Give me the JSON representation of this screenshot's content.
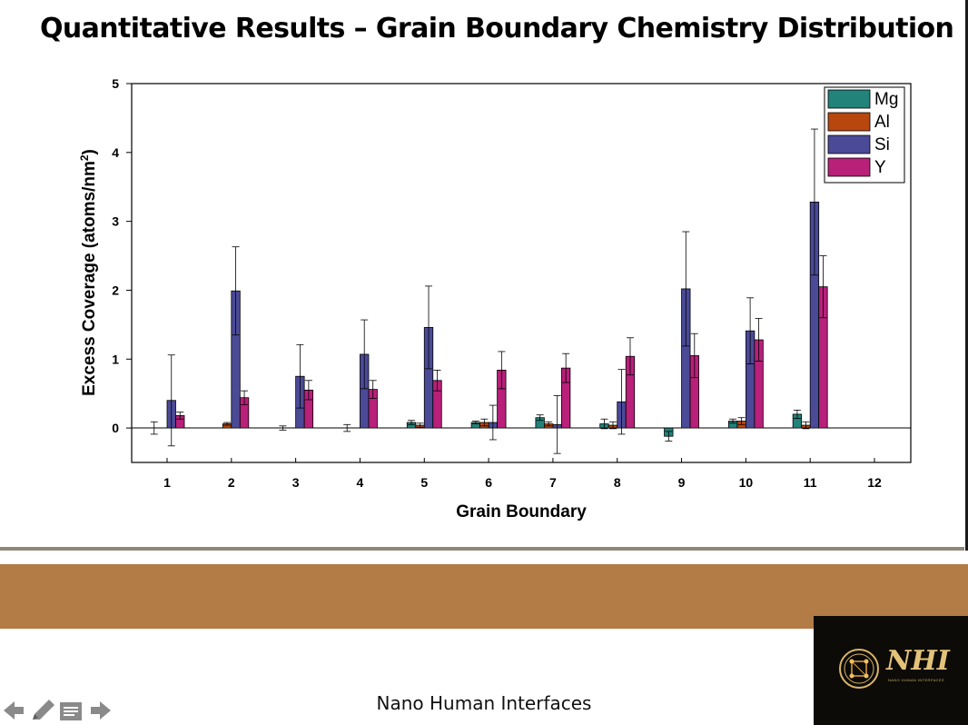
{
  "slide": {
    "title": "Quantitative Results – Grain Boundary Chemistry Distribution",
    "footer": "Nano Human Interfaces",
    "logo_text": "NHI",
    "logo_subtext": "NANO HUMAN INTERFACES"
  },
  "nav_icons": [
    "arrow-left-icon",
    "pencil-icon",
    "notes-icon",
    "arrow-right-icon"
  ],
  "chart_data": {
    "type": "bar",
    "xlabel": "Grain Boundary",
    "ylabel_main": "Excess Coverage (atoms/nm",
    "ylabel_sup": "2",
    "ylabel_end": ")",
    "ylim": [
      -0.5,
      5
    ],
    "yticks": [
      0,
      1,
      2,
      3,
      4,
      5
    ],
    "categories": [
      "1",
      "2",
      "3",
      "4",
      "5",
      "6",
      "7",
      "8",
      "9",
      "10",
      "11",
      "12"
    ],
    "legend_position": "top-right",
    "series": [
      {
        "name": "Mg",
        "color": "#21837a",
        "values": [
          0.0,
          0.0,
          0.0,
          0.0,
          0.08,
          0.08,
          0.15,
          0.06,
          -0.12,
          0.1,
          0.2,
          null
        ],
        "errors": [
          0.09,
          0.0,
          0.03,
          0.05,
          0.03,
          0.02,
          0.04,
          0.07,
          0.07,
          0.03,
          0.06,
          null
        ]
      },
      {
        "name": "Al",
        "color": "#b7470f",
        "values": [
          0.0,
          0.06,
          0.0,
          0.0,
          0.04,
          0.08,
          0.06,
          0.04,
          0.0,
          0.1,
          0.04,
          null
        ],
        "errors": [
          0.0,
          0.02,
          0.0,
          0.0,
          0.03,
          0.05,
          0.03,
          0.05,
          0.0,
          0.05,
          0.05,
          null
        ]
      },
      {
        "name": "Si",
        "color": "#4b4a97",
        "values": [
          0.4,
          1.99,
          0.75,
          1.07,
          1.46,
          0.08,
          0.05,
          0.38,
          2.02,
          1.41,
          3.28,
          null
        ],
        "errors": [
          0.66,
          0.64,
          0.46,
          0.5,
          0.6,
          0.25,
          0.42,
          0.47,
          0.83,
          0.48,
          1.06,
          null
        ]
      },
      {
        "name": "Y",
        "color": "#b8207a",
        "values": [
          0.18,
          0.44,
          0.55,
          0.56,
          0.69,
          0.84,
          0.87,
          1.04,
          1.05,
          1.28,
          2.05,
          null
        ],
        "errors": [
          0.05,
          0.1,
          0.14,
          0.13,
          0.15,
          0.27,
          0.21,
          0.27,
          0.32,
          0.31,
          0.45,
          null
        ]
      }
    ]
  }
}
